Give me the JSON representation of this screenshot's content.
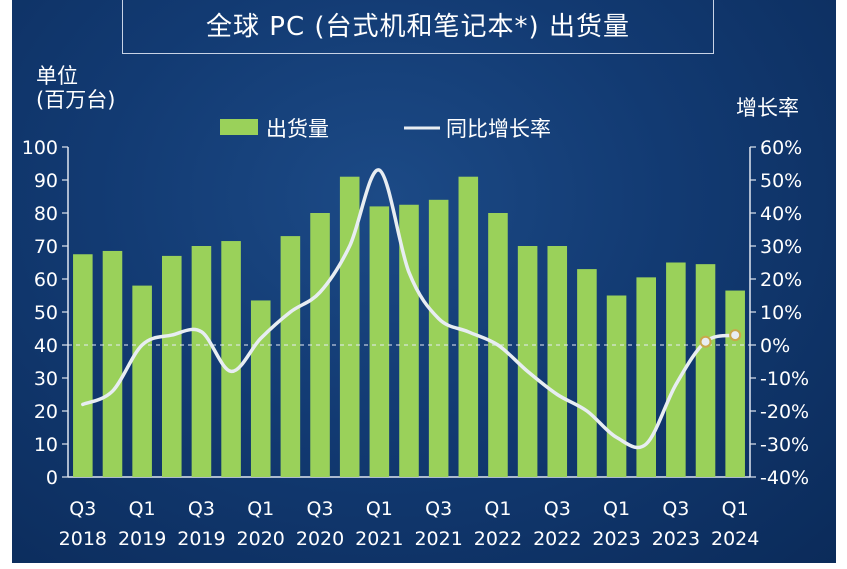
{
  "chart_data": {
    "type": "bar",
    "title": "全球 PC (台式机和笔记本*) 出货量",
    "ylabel_left": "单位\n(百万台)",
    "ylabel_right": "增长率",
    "legend": [
      {
        "name": "出货量",
        "color": "#9ad15a",
        "kind": "bar"
      },
      {
        "name": "同比增长率",
        "color": "#e8edf2",
        "kind": "line"
      }
    ],
    "legend_placement": "top",
    "categories": [
      "Q3 2018",
      "Q4 2018",
      "Q1 2019",
      "Q2 2019",
      "Q3 2019",
      "Q4 2019",
      "Q1 2020",
      "Q2 2020",
      "Q3 2020",
      "Q4 2020",
      "Q1 2021",
      "Q2 2021",
      "Q3 2021",
      "Q4 2021",
      "Q1 2022",
      "Q2 2022",
      "Q3 2022",
      "Q4 2022",
      "Q1 2023",
      "Q2 2023",
      "Q3 2023",
      "Q4 2023",
      "Q1 2024"
    ],
    "x_tick_labels": [
      {
        "q": "Q3",
        "year": "2018"
      },
      {
        "q": "Q1",
        "year": "2019"
      },
      {
        "q": "Q3",
        "year": "2019"
      },
      {
        "q": "Q1",
        "year": "2020"
      },
      {
        "q": "Q3",
        "year": "2020"
      },
      {
        "q": "Q1",
        "year": "2021"
      },
      {
        "q": "Q3",
        "year": "2021"
      },
      {
        "q": "Q1",
        "year": "2022"
      },
      {
        "q": "Q3",
        "year": "2022"
      },
      {
        "q": "Q1",
        "year": "2023"
      },
      {
        "q": "Q3",
        "year": "2023"
      },
      {
        "q": "Q1",
        "year": "2024"
      }
    ],
    "series": [
      {
        "name": "出货量",
        "axis": "left",
        "values": [
          67.5,
          68.5,
          58,
          67,
          70,
          71.5,
          53.5,
          73,
          80,
          91,
          82,
          82.5,
          84,
          91,
          80,
          70,
          70,
          63,
          55,
          60.5,
          65,
          64.5,
          56.5
        ]
      },
      {
        "name": "同比增长率",
        "axis": "right",
        "values": [
          -18,
          -14,
          0,
          3,
          4,
          -8,
          2,
          10,
          16,
          30,
          53,
          22,
          8,
          4,
          0,
          -8,
          -15,
          -20,
          -28,
          -30,
          -12,
          1,
          3
        ]
      }
    ],
    "highlighted_points": [
      21,
      22
    ],
    "ylim_left": [
      0,
      100
    ],
    "yticks_left": [
      "100",
      "90",
      "80",
      "70",
      "60",
      "50",
      "40",
      "30",
      "20",
      "10",
      "0"
    ],
    "ylim_right": [
      -40,
      60
    ],
    "yticks_right": [
      "60%",
      "50%",
      "40%",
      "30%",
      "20%",
      "10%",
      "0%",
      "-10%",
      "-20%",
      "-30%",
      "-40%"
    ],
    "zero_line_pct": 0,
    "grid": false,
    "colors": {
      "background": "#123a72",
      "bar": "#9ad15a",
      "line": "#e8edf2",
      "axis": "#dfe6f0"
    }
  }
}
